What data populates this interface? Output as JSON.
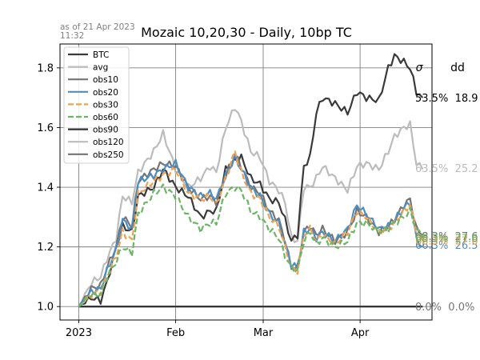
{
  "chart_data": {
    "type": "line",
    "title": "Mozaic 10,20,30 - Daily, 10bp TC",
    "timestamp": "as of 21 Apr 2023\n11:32",
    "xlabel": "",
    "ylabel": "",
    "x_range": [
      "2022-12-26",
      "2023-04-24"
    ],
    "ylim": [
      0.955,
      1.88
    ],
    "grid": true,
    "legend_position": "upper-left",
    "x_ticks": [
      {
        "date": "2023-01-01",
        "label": "2023"
      },
      {
        "date": "2023-02-01",
        "label": "Feb"
      },
      {
        "date": "2023-03-01",
        "label": "Mar"
      },
      {
        "date": "2023-04-01",
        "label": "Apr"
      }
    ],
    "y_ticks": [
      1.0,
      1.2,
      1.4,
      1.6,
      1.8
    ],
    "y_tick_labels": [
      "1.0",
      "1.2",
      "1.4",
      "1.6",
      "1.8"
    ],
    "stats_headers": [
      "σ",
      "dd"
    ],
    "series": [
      {
        "name": "BTC",
        "color": "#3a3a3a",
        "dash": "solid",
        "label": "53.5%  18.9",
        "label_y": 1.7,
        "anchors": [
          [
            "2023-01-01",
            1.0
          ],
          [
            "2023-01-05",
            1.03
          ],
          [
            "2023-01-08",
            1.02
          ],
          [
            "2023-01-10",
            1.08
          ],
          [
            "2023-01-13",
            1.2
          ],
          [
            "2023-01-15",
            1.27
          ],
          [
            "2023-01-18",
            1.25
          ],
          [
            "2023-01-20",
            1.37
          ],
          [
            "2023-01-25",
            1.4
          ],
          [
            "2023-01-28",
            1.46
          ],
          [
            "2023-02-01",
            1.4
          ],
          [
            "2023-02-05",
            1.37
          ],
          [
            "2023-02-09",
            1.3
          ],
          [
            "2023-02-12",
            1.32
          ],
          [
            "2023-02-14",
            1.32
          ],
          [
            "2023-02-17",
            1.46
          ],
          [
            "2023-02-20",
            1.49
          ],
          [
            "2023-02-22",
            1.5
          ],
          [
            "2023-02-25",
            1.43
          ],
          [
            "2023-02-28",
            1.41
          ],
          [
            "2023-03-03",
            1.36
          ],
          [
            "2023-03-06",
            1.35
          ],
          [
            "2023-03-08",
            1.29
          ],
          [
            "2023-03-10",
            1.22
          ],
          [
            "2023-03-12",
            1.24
          ],
          [
            "2023-03-14",
            1.47
          ],
          [
            "2023-03-16",
            1.5
          ],
          [
            "2023-03-18",
            1.65
          ],
          [
            "2023-03-20",
            1.7
          ],
          [
            "2023-03-24",
            1.68
          ],
          [
            "2023-03-28",
            1.65
          ],
          [
            "2023-03-31",
            1.72
          ],
          [
            "2023-04-03",
            1.7
          ],
          [
            "2023-04-07",
            1.69
          ],
          [
            "2023-04-10",
            1.8
          ],
          [
            "2023-04-12",
            1.84
          ],
          [
            "2023-04-15",
            1.82
          ],
          [
            "2023-04-17",
            1.8
          ],
          [
            "2023-04-19",
            1.72
          ],
          [
            "2023-04-21",
            1.7
          ]
        ]
      },
      {
        "name": "avg",
        "color": "#bcbcbc",
        "dash": "solid",
        "label": "63.5%  25.2",
        "label_y": 1.465,
        "anchors": [
          [
            "2023-01-01",
            1.0
          ],
          [
            "2023-01-05",
            1.08
          ],
          [
            "2023-01-08",
            1.1
          ],
          [
            "2023-01-10",
            1.16
          ],
          [
            "2023-01-13",
            1.23
          ],
          [
            "2023-01-15",
            1.37
          ],
          [
            "2023-01-18",
            1.35
          ],
          [
            "2023-01-20",
            1.45
          ],
          [
            "2023-01-25",
            1.52
          ],
          [
            "2023-01-28",
            1.58
          ],
          [
            "2023-02-01",
            1.46
          ],
          [
            "2023-02-05",
            1.4
          ],
          [
            "2023-02-09",
            1.43
          ],
          [
            "2023-02-12",
            1.47
          ],
          [
            "2023-02-14",
            1.45
          ],
          [
            "2023-02-17",
            1.6
          ],
          [
            "2023-02-20",
            1.67
          ],
          [
            "2023-02-22",
            1.62
          ],
          [
            "2023-02-25",
            1.52
          ],
          [
            "2023-02-28",
            1.5
          ],
          [
            "2023-03-03",
            1.42
          ],
          [
            "2023-03-06",
            1.39
          ],
          [
            "2023-03-08",
            1.35
          ],
          [
            "2023-03-10",
            1.23
          ],
          [
            "2023-03-12",
            1.22
          ],
          [
            "2023-03-14",
            1.4
          ],
          [
            "2023-03-16",
            1.4
          ],
          [
            "2023-03-18",
            1.43
          ],
          [
            "2023-03-20",
            1.47
          ],
          [
            "2023-03-24",
            1.43
          ],
          [
            "2023-03-28",
            1.39
          ],
          [
            "2023-03-31",
            1.47
          ],
          [
            "2023-04-03",
            1.48
          ],
          [
            "2023-04-07",
            1.46
          ],
          [
            "2023-04-10",
            1.52
          ],
          [
            "2023-04-12",
            1.57
          ],
          [
            "2023-04-15",
            1.6
          ],
          [
            "2023-04-17",
            1.61
          ],
          [
            "2023-04-19",
            1.48
          ],
          [
            "2023-04-21",
            1.46
          ]
        ]
      },
      {
        "name": "obs10",
        "color": "#747474",
        "dash": "solid",
        "label": "68.3%  27.6",
        "label_y": 1.237,
        "anchors": [
          [
            "2023-01-01",
            1.0
          ],
          [
            "2023-01-05",
            1.06
          ],
          [
            "2023-01-08",
            1.07
          ],
          [
            "2023-01-10",
            1.13
          ],
          [
            "2023-01-13",
            1.2
          ],
          [
            "2023-01-15",
            1.3
          ],
          [
            "2023-01-18",
            1.27
          ],
          [
            "2023-01-20",
            1.42
          ],
          [
            "2023-01-25",
            1.46
          ],
          [
            "2023-01-28",
            1.48
          ],
          [
            "2023-02-01",
            1.47
          ],
          [
            "2023-02-05",
            1.4
          ],
          [
            "2023-02-09",
            1.36
          ],
          [
            "2023-02-12",
            1.37
          ],
          [
            "2023-02-14",
            1.35
          ],
          [
            "2023-02-17",
            1.44
          ],
          [
            "2023-02-20",
            1.51
          ],
          [
            "2023-02-22",
            1.47
          ],
          [
            "2023-02-25",
            1.4
          ],
          [
            "2023-02-28",
            1.38
          ],
          [
            "2023-03-03",
            1.32
          ],
          [
            "2023-03-06",
            1.29
          ],
          [
            "2023-03-08",
            1.22
          ],
          [
            "2023-03-10",
            1.13
          ],
          [
            "2023-03-12",
            1.13
          ],
          [
            "2023-03-14",
            1.25
          ],
          [
            "2023-03-16",
            1.27
          ],
          [
            "2023-03-18",
            1.24
          ],
          [
            "2023-03-20",
            1.26
          ],
          [
            "2023-03-24",
            1.22
          ],
          [
            "2023-03-28",
            1.25
          ],
          [
            "2023-03-31",
            1.32
          ],
          [
            "2023-04-03",
            1.3
          ],
          [
            "2023-04-07",
            1.25
          ],
          [
            "2023-04-10",
            1.27
          ],
          [
            "2023-04-12",
            1.29
          ],
          [
            "2023-04-15",
            1.34
          ],
          [
            "2023-04-17",
            1.36
          ],
          [
            "2023-04-19",
            1.26
          ],
          [
            "2023-04-21",
            1.24
          ]
        ]
      },
      {
        "name": "obs20",
        "color": "#4d8ec2",
        "dash": "solid",
        "label": "66.3%  26.5",
        "label_y": 1.207,
        "anchors": [
          [
            "2023-01-01",
            1.0
          ],
          [
            "2023-01-05",
            1.05
          ],
          [
            "2023-01-08",
            1.06
          ],
          [
            "2023-01-10",
            1.12
          ],
          [
            "2023-01-13",
            1.19
          ],
          [
            "2023-01-15",
            1.29
          ],
          [
            "2023-01-18",
            1.26
          ],
          [
            "2023-01-20",
            1.42
          ],
          [
            "2023-01-25",
            1.44
          ],
          [
            "2023-01-28",
            1.46
          ],
          [
            "2023-02-01",
            1.48
          ],
          [
            "2023-02-05",
            1.4
          ],
          [
            "2023-02-09",
            1.37
          ],
          [
            "2023-02-12",
            1.38
          ],
          [
            "2023-02-14",
            1.36
          ],
          [
            "2023-02-17",
            1.44
          ],
          [
            "2023-02-20",
            1.5
          ],
          [
            "2023-02-22",
            1.46
          ],
          [
            "2023-02-25",
            1.4
          ],
          [
            "2023-02-28",
            1.37
          ],
          [
            "2023-03-03",
            1.31
          ],
          [
            "2023-03-06",
            1.28
          ],
          [
            "2023-03-08",
            1.21
          ],
          [
            "2023-03-10",
            1.14
          ],
          [
            "2023-03-12",
            1.13
          ],
          [
            "2023-03-14",
            1.25
          ],
          [
            "2023-03-16",
            1.26
          ],
          [
            "2023-03-18",
            1.23
          ],
          [
            "2023-03-20",
            1.25
          ],
          [
            "2023-03-24",
            1.22
          ],
          [
            "2023-03-28",
            1.26
          ],
          [
            "2023-03-31",
            1.34
          ],
          [
            "2023-04-03",
            1.31
          ],
          [
            "2023-04-07",
            1.26
          ],
          [
            "2023-04-10",
            1.27
          ],
          [
            "2023-04-12",
            1.29
          ],
          [
            "2023-04-15",
            1.33
          ],
          [
            "2023-04-17",
            1.35
          ],
          [
            "2023-04-19",
            1.23
          ],
          [
            "2023-04-21",
            1.2
          ]
        ]
      },
      {
        "name": "obs30",
        "color": "#f0a14e",
        "dash": "dashed",
        "label": "68.3%  27.6",
        "label_y": 1.222,
        "anchors": [
          [
            "2023-01-01",
            1.0
          ],
          [
            "2023-01-05",
            1.04
          ],
          [
            "2023-01-08",
            1.05
          ],
          [
            "2023-01-10",
            1.1
          ],
          [
            "2023-01-13",
            1.17
          ],
          [
            "2023-01-15",
            1.25
          ],
          [
            "2023-01-18",
            1.22
          ],
          [
            "2023-01-20",
            1.38
          ],
          [
            "2023-01-25",
            1.42
          ],
          [
            "2023-01-28",
            1.44
          ],
          [
            "2023-02-01",
            1.46
          ],
          [
            "2023-02-05",
            1.38
          ],
          [
            "2023-02-09",
            1.36
          ],
          [
            "2023-02-12",
            1.37
          ],
          [
            "2023-02-14",
            1.34
          ],
          [
            "2023-02-17",
            1.43
          ],
          [
            "2023-02-20",
            1.52
          ],
          [
            "2023-02-22",
            1.45
          ],
          [
            "2023-02-25",
            1.38
          ],
          [
            "2023-02-28",
            1.36
          ],
          [
            "2023-03-03",
            1.3
          ],
          [
            "2023-03-06",
            1.27
          ],
          [
            "2023-03-08",
            1.2
          ],
          [
            "2023-03-10",
            1.13
          ],
          [
            "2023-03-12",
            1.12
          ],
          [
            "2023-03-14",
            1.24
          ],
          [
            "2023-03-16",
            1.26
          ],
          [
            "2023-03-18",
            1.22
          ],
          [
            "2023-03-20",
            1.24
          ],
          [
            "2023-03-24",
            1.21
          ],
          [
            "2023-03-28",
            1.25
          ],
          [
            "2023-03-31",
            1.32
          ],
          [
            "2023-04-03",
            1.3
          ],
          [
            "2023-04-07",
            1.25
          ],
          [
            "2023-04-10",
            1.26
          ],
          [
            "2023-04-12",
            1.28
          ],
          [
            "2023-04-15",
            1.32
          ],
          [
            "2023-04-17",
            1.34
          ],
          [
            "2023-04-19",
            1.25
          ],
          [
            "2023-04-21",
            1.22
          ]
        ]
      },
      {
        "name": "obs60",
        "color": "#6ab664",
        "dash": "dashed",
        "label": "68.3%  27.6",
        "label_y": 1.23,
        "anchors": [
          [
            "2023-01-01",
            1.0
          ],
          [
            "2023-01-05",
            1.04
          ],
          [
            "2023-01-08",
            1.04
          ],
          [
            "2023-01-10",
            1.1
          ],
          [
            "2023-01-13",
            1.15
          ],
          [
            "2023-01-15",
            1.2
          ],
          [
            "2023-01-18",
            1.18
          ],
          [
            "2023-01-20",
            1.31
          ],
          [
            "2023-01-25",
            1.38
          ],
          [
            "2023-01-28",
            1.4
          ],
          [
            "2023-02-01",
            1.37
          ],
          [
            "2023-02-05",
            1.3
          ],
          [
            "2023-02-09",
            1.26
          ],
          [
            "2023-02-12",
            1.28
          ],
          [
            "2023-02-14",
            1.28
          ],
          [
            "2023-02-17",
            1.38
          ],
          [
            "2023-02-20",
            1.4
          ],
          [
            "2023-02-22",
            1.39
          ],
          [
            "2023-02-25",
            1.32
          ],
          [
            "2023-02-28",
            1.3
          ],
          [
            "2023-03-03",
            1.26
          ],
          [
            "2023-03-06",
            1.23
          ],
          [
            "2023-03-08",
            1.17
          ],
          [
            "2023-03-10",
            1.13
          ],
          [
            "2023-03-12",
            1.12
          ],
          [
            "2023-03-14",
            1.22
          ],
          [
            "2023-03-16",
            1.25
          ],
          [
            "2023-03-18",
            1.21
          ],
          [
            "2023-03-20",
            1.23
          ],
          [
            "2023-03-24",
            1.2
          ],
          [
            "2023-03-28",
            1.22
          ],
          [
            "2023-03-31",
            1.28
          ],
          [
            "2023-04-03",
            1.28
          ],
          [
            "2023-04-07",
            1.25
          ],
          [
            "2023-04-10",
            1.26
          ],
          [
            "2023-04-12",
            1.28
          ],
          [
            "2023-04-15",
            1.3
          ],
          [
            "2023-04-17",
            1.32
          ],
          [
            "2023-04-19",
            1.26
          ],
          [
            "2023-04-21",
            1.23
          ]
        ]
      },
      {
        "name": "obs90",
        "color": "#2e2e2e",
        "dash": "solid",
        "label": "",
        "label_y": 1.0,
        "anchors": [
          [
            "2023-01-01",
            1.0
          ],
          [
            "2023-04-21",
            1.0
          ]
        ]
      },
      {
        "name": "obs120",
        "color": "#bcbcbc",
        "dash": "solid",
        "label": "",
        "label_y": 1.0,
        "anchors": [
          [
            "2023-01-01",
            1.0
          ],
          [
            "2023-04-21",
            1.0
          ]
        ]
      },
      {
        "name": "obs250",
        "color": "#747474",
        "dash": "solid",
        "label": "0.0%  0.0%",
        "label_y": 1.0,
        "anchors": [
          [
            "2023-01-01",
            1.0
          ],
          [
            "2023-04-21",
            1.0
          ]
        ]
      }
    ]
  }
}
